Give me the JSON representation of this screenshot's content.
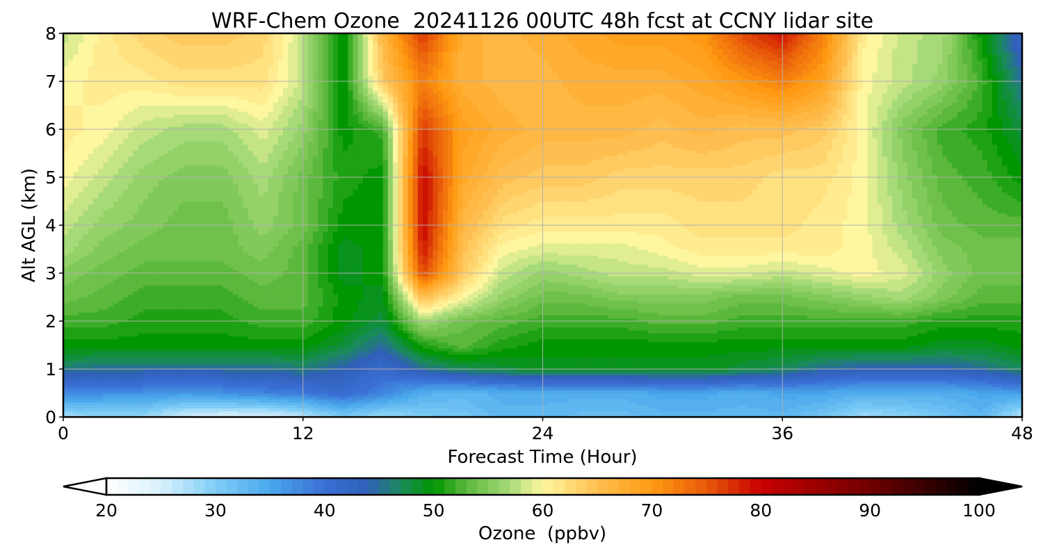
{
  "chart_data": {
    "type": "heatmap",
    "title": "WRF-Chem Ozone  20241126 00UTC 48h fcst at CCNY lidar site",
    "xlabel": "Forecast Time (Hour)",
    "ylabel": "Alt AGL (km)",
    "xlim": [
      0,
      48
    ],
    "ylim": [
      0,
      8
    ],
    "xticks": [
      0,
      12,
      24,
      36,
      48
    ],
    "yticks": [
      0,
      1,
      2,
      3,
      4,
      5,
      6,
      7,
      8
    ],
    "grid": true,
    "x": [
      0,
      2,
      4,
      6,
      8,
      10,
      12,
      14,
      16,
      18,
      20,
      22,
      24,
      26,
      28,
      30,
      32,
      34,
      36,
      38,
      40,
      42,
      44,
      46,
      48
    ],
    "y": [
      0,
      0.5,
      1,
      1.5,
      2,
      2.5,
      3,
      3.5,
      4,
      5,
      6,
      7,
      8
    ],
    "z": [
      [
        27,
        29,
        28,
        25,
        24,
        24,
        26,
        30,
        28,
        30,
        31,
        33,
        33,
        32,
        32,
        33,
        33,
        33,
        33,
        31,
        28,
        29,
        31,
        33,
        26
      ],
      [
        38,
        37,
        37,
        36,
        37,
        38,
        39,
        41,
        38,
        34,
        33,
        34,
        34,
        34,
        34,
        35,
        35,
        34,
        35,
        35,
        34,
        34,
        34,
        35,
        36
      ],
      [
        46,
        45,
        45,
        45,
        45,
        45,
        46,
        44,
        41,
        45,
        47,
        48,
        49,
        49,
        49,
        49,
        49,
        48,
        47,
        45,
        44,
        44,
        44,
        45,
        47
      ],
      [
        50,
        50,
        50,
        50,
        50,
        50,
        50,
        48,
        45,
        51,
        53,
        51,
        50,
        50,
        50,
        50,
        50,
        50,
        50,
        50,
        50,
        50,
        49,
        49,
        50
      ],
      [
        52,
        52,
        51,
        51,
        51,
        52,
        52,
        50,
        48,
        57,
        54,
        53,
        52,
        52,
        52,
        53,
        53,
        52,
        52,
        52,
        52,
        52,
        51,
        51,
        51
      ],
      [
        54,
        53,
        52,
        52,
        52,
        53,
        53,
        50,
        49,
        65,
        60,
        56,
        54,
        54,
        55,
        55,
        55,
        54,
        54,
        55,
        56,
        57,
        55,
        53,
        53
      ],
      [
        55,
        54,
        53,
        53,
        53,
        54,
        53,
        49,
        50,
        76,
        64,
        58,
        56,
        57,
        58,
        58,
        59,
        59,
        58,
        59,
        60,
        59,
        56,
        54,
        54
      ],
      [
        57,
        55,
        54,
        54,
        54,
        55,
        53,
        49,
        50,
        79,
        65,
        60,
        59,
        59,
        59,
        60,
        61,
        61,
        61,
        61,
        60,
        58,
        55,
        54,
        54
      ],
      [
        58,
        56,
        55,
        54,
        54,
        56,
        54,
        50,
        50,
        80,
        66,
        62,
        61,
        61,
        61,
        61,
        62,
        62,
        62,
        61,
        60,
        57,
        54,
        53,
        53
      ],
      [
        60,
        58,
        56,
        55,
        55,
        57,
        54,
        51,
        50,
        80,
        68,
        65,
        64,
        64,
        63,
        63,
        63,
        63,
        62,
        62,
        60,
        56,
        53,
        52,
        50
      ],
      [
        61,
        60,
        58,
        57,
        57,
        59,
        56,
        50,
        52,
        77,
        69,
        67,
        66,
        66,
        66,
        65,
        66,
        65,
        65,
        64,
        60,
        55,
        52,
        51,
        48
      ],
      [
        60,
        61,
        61,
        62,
        62,
        62,
        58,
        49,
        64,
        72,
        67,
        66,
        66,
        67,
        67,
        67,
        68,
        70,
        72,
        69,
        60,
        58,
        56,
        52,
        45
      ],
      [
        58,
        61,
        63,
        64,
        64,
        63,
        58,
        49,
        66,
        77,
        67,
        66,
        67,
        68,
        69,
        69,
        70,
        76,
        79,
        72,
        61,
        58,
        57,
        50,
        42
      ]
    ]
  },
  "colorbar": {
    "label": "Ozone  (ppbv)",
    "min": 20,
    "max": 100,
    "ticks": [
      20,
      30,
      40,
      50,
      60,
      70,
      80,
      90,
      100
    ],
    "extend": "both",
    "stops": [
      {
        "v": 20,
        "c": "#ffffff"
      },
      {
        "v": 25,
        "c": "#d8f0fc"
      },
      {
        "v": 30,
        "c": "#7fcdf6"
      },
      {
        "v": 35,
        "c": "#4aa8ec"
      },
      {
        "v": 40,
        "c": "#3a6fd4"
      },
      {
        "v": 44,
        "c": "#3060b8"
      },
      {
        "v": 47,
        "c": "#1a8a5a"
      },
      {
        "v": 50,
        "c": "#009600"
      },
      {
        "v": 53,
        "c": "#5cb83c"
      },
      {
        "v": 57,
        "c": "#a6da78"
      },
      {
        "v": 60,
        "c": "#fff7a0"
      },
      {
        "v": 65,
        "c": "#ffbf50"
      },
      {
        "v": 70,
        "c": "#ff9a12"
      },
      {
        "v": 75,
        "c": "#e85a0a"
      },
      {
        "v": 80,
        "c": "#c80000"
      },
      {
        "v": 90,
        "c": "#700000"
      },
      {
        "v": 100,
        "c": "#000000"
      }
    ]
  },
  "colors": {
    "grid": "#b0b0b0",
    "axis": "#000000",
    "background": "#ffffff"
  }
}
